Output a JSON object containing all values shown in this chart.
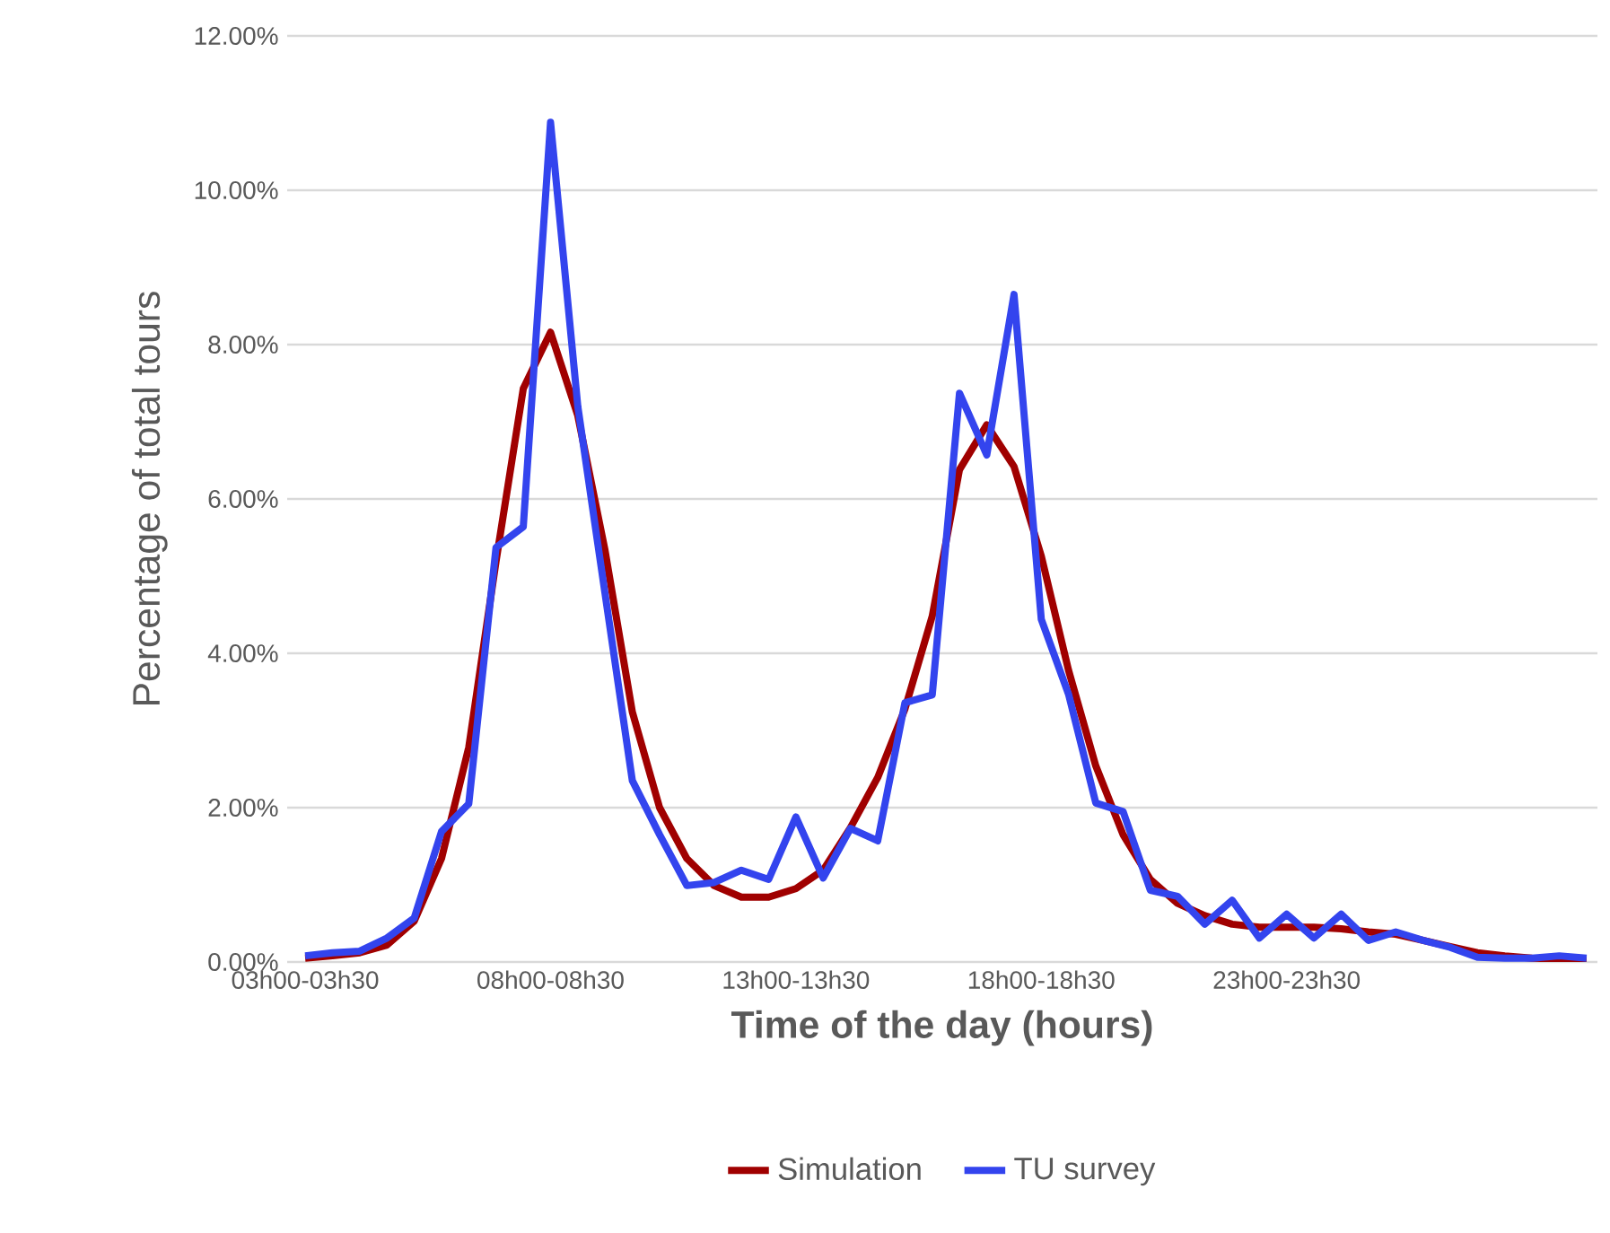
{
  "chart_data": {
    "type": "line",
    "xlabel": "Time of the day (hours)",
    "ylabel": "Percentage of total tours",
    "categories": [
      "03h00-03h30",
      null,
      null,
      null,
      null,
      null,
      null,
      null,
      null,
      "08h00-08h30",
      null,
      null,
      null,
      null,
      null,
      null,
      null,
      null,
      "13h00-13h30",
      null,
      null,
      null,
      null,
      null,
      null,
      null,
      null,
      "18h00-18h30",
      null,
      null,
      null,
      null,
      null,
      null,
      null,
      null,
      "23h00-23h30",
      null,
      null,
      null,
      null,
      null,
      null,
      null,
      null,
      null,
      null,
      null
    ],
    "series": [
      {
        "name": "Simulation",
        "color": "#a00000",
        "values": [
          0.05,
          0.08,
          0.12,
          0.22,
          0.53,
          1.34,
          2.78,
          5.19,
          7.43,
          8.16,
          7.08,
          5.33,
          3.24,
          2.0,
          1.34,
          0.99,
          0.84,
          0.84,
          0.95,
          1.19,
          1.74,
          2.39,
          3.28,
          4.48,
          6.38,
          6.96,
          6.42,
          5.26,
          3.78,
          2.54,
          1.65,
          1.07,
          0.76,
          0.6,
          0.49,
          0.45,
          0.45,
          0.45,
          0.43,
          0.39,
          0.36,
          0.28,
          0.2,
          0.12,
          0.08,
          0.05,
          0.04,
          0.02
        ]
      },
      {
        "name": "TU survey",
        "color": "#3344ee",
        "values": [
          0.08,
          0.12,
          0.14,
          0.31,
          0.57,
          1.69,
          2.05,
          5.37,
          5.64,
          10.88,
          7.2,
          4.77,
          2.35,
          1.65,
          0.99,
          1.03,
          1.19,
          1.07,
          1.88,
          1.09,
          1.73,
          1.57,
          3.36,
          3.46,
          7.37,
          6.57,
          8.65,
          4.44,
          3.47,
          2.06,
          1.95,
          0.93,
          0.85,
          0.49,
          0.8,
          0.31,
          0.62,
          0.31,
          0.62,
          0.28,
          0.39,
          0.28,
          0.19,
          0.06,
          0.05,
          0.05,
          0.08,
          0.05
        ]
      }
    ],
    "ylim": [
      0,
      12
    ],
    "yticks": [
      {
        "value": 0,
        "label": "0.00%"
      },
      {
        "value": 2,
        "label": "2.00%"
      },
      {
        "value": 4,
        "label": "4.00%"
      },
      {
        "value": 6,
        "label": "6.00%"
      },
      {
        "value": 8,
        "label": "8.00%"
      },
      {
        "value": 10,
        "label": "10.00%"
      },
      {
        "value": 12,
        "label": "12.00%"
      }
    ],
    "grid": "y",
    "legend": "bottom",
    "marker": "none",
    "line_style": "solid"
  }
}
